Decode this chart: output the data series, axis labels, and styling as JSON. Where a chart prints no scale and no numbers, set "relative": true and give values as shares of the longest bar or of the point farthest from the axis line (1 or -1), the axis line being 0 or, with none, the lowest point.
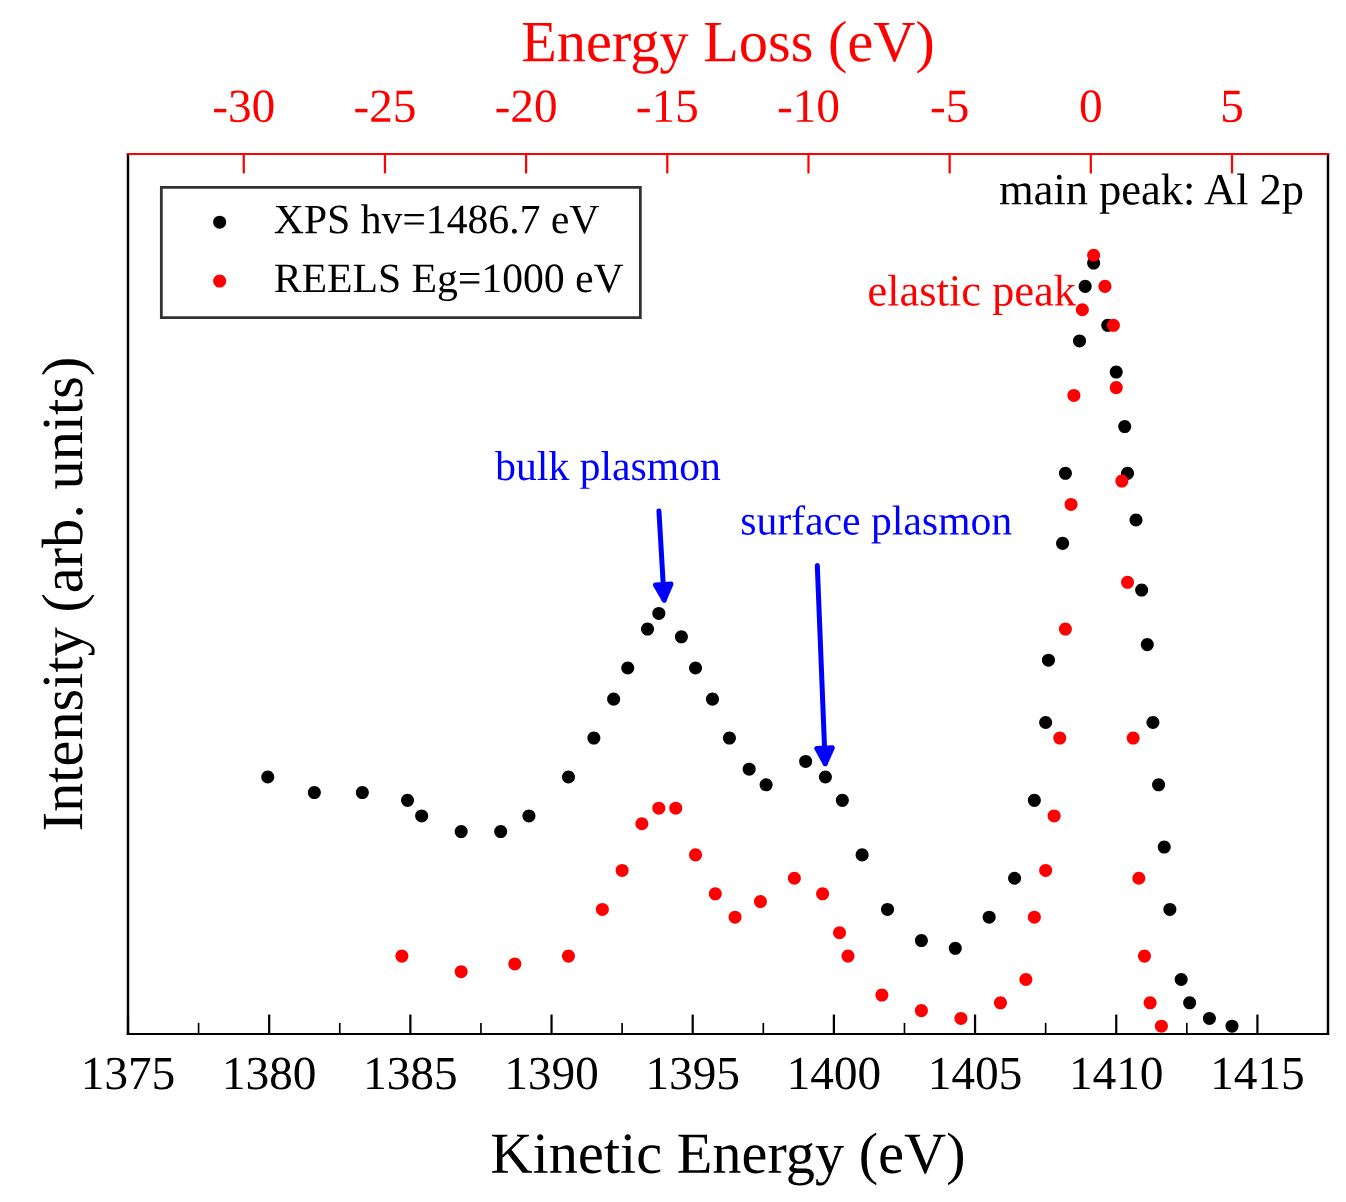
{
  "chart_data": {
    "type": "scatter",
    "relative": true,
    "xlabel": "Kinetic Energy (eV)",
    "ylabel": "Intensity (arb. units)",
    "x2label": "Energy Loss (eV)",
    "xlim": [
      1375,
      1417.5
    ],
    "xticks": [
      1375,
      {
        "value": 1377.5,
        "label": null
      },
      1380,
      {
        "value": 1382.5,
        "label": null
      },
      1385,
      {
        "value": 1387.5,
        "label": null
      },
      1390,
      {
        "value": 1392.5,
        "label": null
      },
      1395,
      {
        "value": 1397.5,
        "label": null
      },
      1400,
      {
        "value": 1402.5,
        "label": null
      },
      1405,
      {
        "value": 1407.5,
        "label": null
      },
      1410,
      {
        "value": 1412.5,
        "label": null
      },
      1415,
      {
        "value": 1417.5,
        "label": null
      }
    ],
    "x2lim": [
      -34.1,
      8.4
    ],
    "x2ticks": [
      -30,
      -25,
      -20,
      -15,
      -10,
      -5,
      0,
      5
    ],
    "marker": "circle",
    "legend": "top left",
    "grid": false,
    "tick_labels": "x",
    "series": [
      {
        "name": "XPS hv=1486.7 eV",
        "color": "#000000",
        "x": [
          1379.95,
          1381.6,
          1383.3,
          1384.9,
          1385.4,
          1386.8,
          1388.2,
          1389.2,
          1390.6,
          1391.5,
          1392.2,
          1392.7,
          1393.4,
          1393.8,
          1394.6,
          1395.1,
          1395.7,
          1396.3,
          1397.0,
          1397.6,
          1399.0,
          1399.7,
          1400.3,
          1401.0,
          1401.9,
          1403.1,
          1404.3,
          1405.5,
          1406.4,
          1407.1,
          1407.5,
          1407.6,
          1408.1,
          1408.2,
          1408.7,
          1408.9,
          1409.2,
          1409.7,
          1410.0,
          1410.3,
          1410.4,
          1410.7,
          1410.9,
          1411.1,
          1411.3,
          1411.5,
          1411.7,
          1411.9,
          1412.3,
          1412.6,
          1413.3,
          1414.1
        ],
        "values": [
          0.33,
          0.31,
          0.31,
          0.3,
          0.28,
          0.26,
          0.26,
          0.28,
          0.33,
          0.38,
          0.43,
          0.47,
          0.52,
          0.54,
          0.51,
          0.47,
          0.43,
          0.38,
          0.34,
          0.32,
          0.35,
          0.33,
          0.3,
          0.23,
          0.16,
          0.12,
          0.11,
          0.15,
          0.2,
          0.3,
          0.4,
          0.48,
          0.63,
          0.72,
          0.89,
          0.96,
          0.99,
          0.91,
          0.85,
          0.78,
          0.72,
          0.66,
          0.57,
          0.5,
          0.4,
          0.32,
          0.24,
          0.16,
          0.07,
          0.04,
          0.02,
          0.01
        ]
      },
      {
        "name": "REELS Eg=1000 eV",
        "color": "#ff0000",
        "x": [
          1384.7,
          1386.8,
          1388.7,
          1390.6,
          1391.8,
          1392.5,
          1393.2,
          1393.8,
          1394.4,
          1395.1,
          1395.8,
          1396.5,
          1397.4,
          1398.6,
          1399.6,
          1400.2,
          1400.5,
          1401.7,
          1403.1,
          1404.5,
          1405.9,
          1406.8,
          1407.1,
          1407.5,
          1407.8,
          1408.0,
          1408.2,
          1408.4,
          1408.5,
          1408.8,
          1409.2,
          1409.6,
          1409.9,
          1410.0,
          1410.2,
          1410.4,
          1410.6,
          1410.8,
          1411.0,
          1411.2,
          1411.6
        ],
        "values": [
          0.1,
          0.08,
          0.09,
          0.1,
          0.16,
          0.21,
          0.27,
          0.29,
          0.29,
          0.23,
          0.18,
          0.15,
          0.17,
          0.2,
          0.18,
          0.13,
          0.1,
          0.05,
          0.03,
          0.02,
          0.04,
          0.07,
          0.15,
          0.21,
          0.28,
          0.38,
          0.52,
          0.68,
          0.82,
          0.93,
          1.0,
          0.96,
          0.91,
          0.83,
          0.71,
          0.58,
          0.38,
          0.2,
          0.1,
          0.04,
          0.01
        ]
      }
    ],
    "annotations": [
      {
        "text": "bulk plasmon",
        "x": 1394,
        "y": 0.55
      },
      {
        "text": "surface plasmon",
        "x": 1399.7,
        "y": 0.34
      },
      "main peak: Al 2p",
      "elastic peak"
    ]
  }
}
